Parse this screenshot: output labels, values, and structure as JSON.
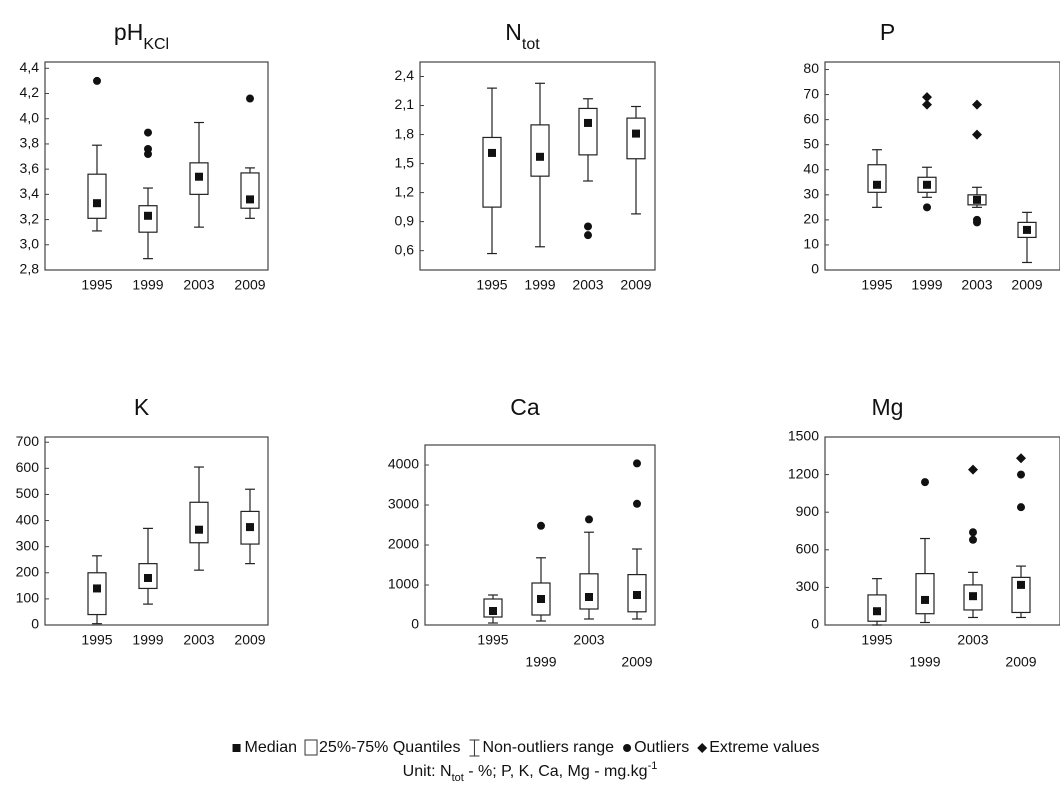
{
  "chart_data": [
    {
      "type": "box",
      "title": "pH",
      "title_sub": "KCl",
      "categories": [
        "1995",
        "1999",
        "2003",
        "2009"
      ],
      "ylim": [
        2.8,
        4.45
      ],
      "yticks": [
        {
          "value": 2.8,
          "label": "2,8"
        },
        {
          "value": 3.0,
          "label": "3,0"
        },
        {
          "value": 3.2,
          "label": "3,2"
        },
        {
          "value": 3.4,
          "label": "3,4"
        },
        {
          "value": 3.6,
          "label": "3,6"
        },
        {
          "value": 3.8,
          "label": "3,8"
        },
        {
          "value": 4.0,
          "label": "4,0"
        },
        {
          "value": 4.2,
          "label": "4,2"
        },
        {
          "value": 4.4,
          "label": "4,4"
        }
      ],
      "boxes": [
        {
          "min": 3.11,
          "q1": 3.21,
          "median": 3.33,
          "q3": 3.56,
          "max": 3.79,
          "outliers": [
            4.3
          ],
          "extremes": []
        },
        {
          "min": 2.89,
          "q1": 3.1,
          "median": 3.23,
          "q3": 3.31,
          "max": 3.45,
          "outliers": [
            3.72,
            3.76,
            3.89
          ],
          "extremes": []
        },
        {
          "min": 3.14,
          "q1": 3.4,
          "median": 3.54,
          "q3": 3.65,
          "max": 3.97,
          "outliers": [],
          "extremes": []
        },
        {
          "min": 3.21,
          "q1": 3.29,
          "median": 3.36,
          "q3": 3.57,
          "max": 3.61,
          "outliers": [
            4.16
          ],
          "extremes": []
        }
      ]
    },
    {
      "type": "box",
      "title": "N",
      "title_sub": "tot",
      "categories": [
        "1995",
        "1999",
        "2003",
        "2009"
      ],
      "ylim": [
        0.4,
        2.55
      ],
      "yticks": [
        {
          "value": 0.6,
          "label": "0,6"
        },
        {
          "value": 0.9,
          "label": "0,9"
        },
        {
          "value": 1.2,
          "label": "1,2"
        },
        {
          "value": 1.5,
          "label": "1,5"
        },
        {
          "value": 1.8,
          "label": "1,8"
        },
        {
          "value": 2.1,
          "label": "2,1"
        },
        {
          "value": 2.4,
          "label": "2,4"
        }
      ],
      "boxes": [
        {
          "min": 0.57,
          "q1": 1.05,
          "median": 1.61,
          "q3": 1.77,
          "max": 2.28,
          "outliers": [],
          "extremes": []
        },
        {
          "min": 0.64,
          "q1": 1.37,
          "median": 1.57,
          "q3": 1.9,
          "max": 2.33,
          "outliers": [],
          "extremes": []
        },
        {
          "min": 1.32,
          "q1": 1.59,
          "median": 1.92,
          "q3": 2.07,
          "max": 2.17,
          "outliers": [
            0.76,
            0.85
          ],
          "extremes": []
        },
        {
          "min": 0.98,
          "q1": 1.55,
          "median": 1.81,
          "q3": 1.97,
          "max": 2.09,
          "outliers": [],
          "extremes": []
        }
      ]
    },
    {
      "type": "box",
      "title": "P",
      "categories": [
        "1995",
        "1999",
        "2003",
        "2009"
      ],
      "ylim": [
        0,
        83
      ],
      "yticks": [
        0,
        10,
        20,
        30,
        40,
        50,
        60,
        70,
        80
      ],
      "boxes": [
        {
          "min": 25,
          "q1": 31,
          "median": 34,
          "q3": 42,
          "max": 48,
          "outliers": [],
          "extremes": []
        },
        {
          "min": 29,
          "q1": 31,
          "median": 34,
          "q3": 37,
          "max": 41,
          "outliers": [
            25
          ],
          "extremes": [
            66,
            69
          ]
        },
        {
          "min": 25,
          "q1": 26,
          "median": 28,
          "q3": 30,
          "max": 33,
          "outliers": [
            19,
            20
          ],
          "extremes": [
            54,
            66
          ]
        },
        {
          "min": 3,
          "q1": 13,
          "median": 16,
          "q3": 19,
          "max": 23,
          "outliers": [],
          "extremes": []
        }
      ]
    },
    {
      "type": "box",
      "title": "K",
      "categories": [
        "1995",
        "1999",
        "2003",
        "2009"
      ],
      "ylim": [
        0,
        720
      ],
      "yticks": [
        0,
        100,
        200,
        300,
        400,
        500,
        600,
        700
      ],
      "boxes": [
        {
          "min": 5,
          "q1": 40,
          "median": 140,
          "q3": 200,
          "max": 265,
          "outliers": [],
          "extremes": []
        },
        {
          "min": 80,
          "q1": 140,
          "median": 180,
          "q3": 235,
          "max": 370,
          "outliers": [],
          "extremes": []
        },
        {
          "min": 210,
          "q1": 315,
          "median": 365,
          "q3": 470,
          "max": 605,
          "outliers": [],
          "extremes": []
        },
        {
          "min": 235,
          "q1": 310,
          "median": 375,
          "q3": 435,
          "max": 520,
          "outliers": [],
          "extremes": []
        }
      ]
    },
    {
      "type": "box",
      "title": "Ca",
      "categories": [
        "1995",
        "1999",
        "2003",
        "2009"
      ],
      "stagger": true,
      "ylim": [
        0,
        4500
      ],
      "yticks": [
        0,
        1000,
        2000,
        3000,
        4000
      ],
      "boxes": [
        {
          "min": 50,
          "q1": 200,
          "median": 350,
          "q3": 650,
          "max": 750,
          "outliers": [],
          "extremes": []
        },
        {
          "min": 100,
          "q1": 250,
          "median": 650,
          "q3": 1050,
          "max": 1680,
          "outliers": [
            2480
          ],
          "extremes": []
        },
        {
          "min": 150,
          "q1": 400,
          "median": 700,
          "q3": 1280,
          "max": 2320,
          "outliers": [
            2640
          ],
          "extremes": []
        },
        {
          "min": 150,
          "q1": 330,
          "median": 750,
          "q3": 1260,
          "max": 1900,
          "outliers": [
            3030,
            4040
          ],
          "extremes": []
        }
      ]
    },
    {
      "type": "box",
      "title": "Mg",
      "categories": [
        "1995",
        "1999",
        "2003",
        "2009"
      ],
      "stagger": true,
      "ylim": [
        0,
        1500
      ],
      "yticks": [
        0,
        300,
        600,
        900,
        1200,
        1500
      ],
      "boxes": [
        {
          "min": 0,
          "q1": 30,
          "median": 110,
          "q3": 240,
          "max": 370,
          "outliers": [],
          "extremes": []
        },
        {
          "min": 20,
          "q1": 90,
          "median": 200,
          "q3": 410,
          "max": 690,
          "outliers": [
            1140
          ],
          "extremes": []
        },
        {
          "min": 60,
          "q1": 120,
          "median": 230,
          "q3": 320,
          "max": 420,
          "outliers": [
            680,
            740
          ],
          "extremes": [
            1240
          ]
        },
        {
          "min": 60,
          "q1": 100,
          "median": 320,
          "q3": 380,
          "max": 470,
          "outliers": [
            940,
            1200
          ],
          "extremes": [
            1330
          ]
        }
      ]
    }
  ],
  "legend": [
    {
      "label": "Median",
      "symbol": "square"
    },
    {
      "label": "25%-75% Quantiles",
      "symbol": "box"
    },
    {
      "label": "Non-outliers range",
      "symbol": "whisker"
    },
    {
      "label": "Outliers",
      "symbol": "circle"
    },
    {
      "label": "Extreme values",
      "symbol": "diamond"
    }
  ],
  "note": [
    {
      "text": "Unit: N"
    },
    {
      "text": "tot",
      "shift": "sub"
    },
    {
      "text": " - %; P, K, Ca, Mg - mg.kg"
    },
    {
      "text": "-1",
      "shift": "super"
    }
  ]
}
